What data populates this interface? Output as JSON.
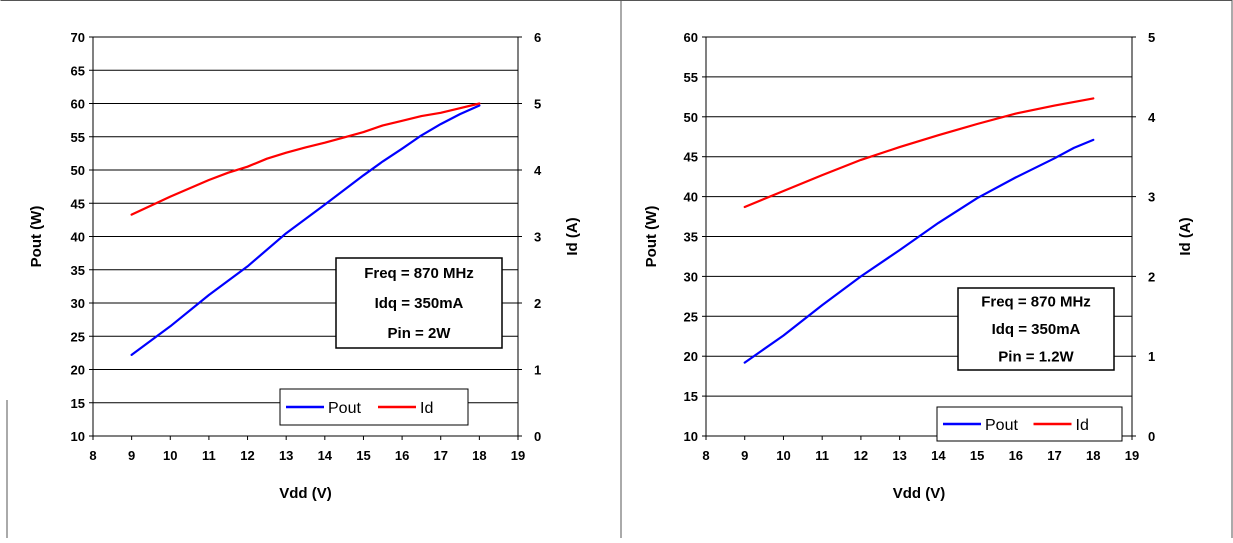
{
  "chart_data": [
    {
      "type": "line",
      "title": "",
      "xlabel": "Vdd (V)",
      "ylabel": "Pout (W)",
      "y2label": "Id (A)",
      "xlim": [
        8,
        19
      ],
      "ylim": [
        10,
        70
      ],
      "y2lim": [
        0,
        6
      ],
      "xticks": [
        8,
        9,
        10,
        11,
        12,
        13,
        14,
        15,
        16,
        17,
        18,
        19
      ],
      "yticks": [
        10,
        15,
        20,
        25,
        30,
        35,
        40,
        45,
        50,
        55,
        60,
        65,
        70
      ],
      "y2ticks": [
        0,
        1,
        2,
        3,
        4,
        5,
        6
      ],
      "grid": "horizontal",
      "legend": "bottom-center",
      "annotation": [
        "Freq = 870 MHz",
        "Idq = 350mA",
        "Pin = 2W"
      ],
      "series": [
        {
          "name": "Pout",
          "axis": "left",
          "color": "#0000ff",
          "x": [
            9,
            10,
            11,
            12,
            13,
            14,
            15,
            15.5,
            16,
            16.5,
            17,
            17.5,
            18
          ],
          "y": [
            22.2,
            26.5,
            31.2,
            35.5,
            40.5,
            44.8,
            49.2,
            51.3,
            53.2,
            55.2,
            56.9,
            58.4,
            59.7
          ]
        },
        {
          "name": "Id",
          "axis": "right",
          "color": "#ff0000",
          "x": [
            9,
            10,
            11,
            11.5,
            12,
            12.5,
            13,
            13.5,
            14,
            14.5,
            15,
            15.5,
            16,
            16.5,
            17,
            17.5,
            18
          ],
          "y": [
            3.33,
            3.6,
            3.85,
            3.96,
            4.05,
            4.17,
            4.26,
            4.34,
            4.41,
            4.49,
            4.57,
            4.67,
            4.74,
            4.81,
            4.86,
            4.93,
            5.0
          ]
        }
      ]
    },
    {
      "type": "line",
      "title": "",
      "xlabel": "Vdd (V)",
      "ylabel": "Pout (W)",
      "y2label": "Id (A)",
      "xlim": [
        8,
        19
      ],
      "ylim": [
        10,
        60
      ],
      "y2lim": [
        0,
        5
      ],
      "xticks": [
        8,
        9,
        10,
        11,
        12,
        13,
        14,
        15,
        16,
        17,
        18,
        19
      ],
      "yticks": [
        10,
        15,
        20,
        25,
        30,
        35,
        40,
        45,
        50,
        55,
        60
      ],
      "y2ticks": [
        0,
        1,
        2,
        3,
        4,
        5
      ],
      "grid": "horizontal",
      "legend": "bottom-right",
      "annotation": [
        "Freq = 870 MHz",
        "Idq = 350mA",
        "Pin = 1.2W"
      ],
      "series": [
        {
          "name": "Pout",
          "axis": "left",
          "color": "#0000ff",
          "x": [
            9,
            10,
            11,
            12,
            13,
            14,
            15,
            16,
            17,
            17.5,
            18
          ],
          "y": [
            19.2,
            22.6,
            26.4,
            30.0,
            33.3,
            36.7,
            39.8,
            42.4,
            44.8,
            46.1,
            47.1
          ]
        },
        {
          "name": "Id",
          "axis": "right",
          "color": "#ff0000",
          "x": [
            9,
            10,
            11,
            12,
            13,
            14,
            15,
            16,
            17,
            18
          ],
          "y": [
            2.87,
            3.07,
            3.27,
            3.46,
            3.62,
            3.77,
            3.91,
            4.04,
            4.14,
            4.23
          ]
        }
      ]
    }
  ]
}
